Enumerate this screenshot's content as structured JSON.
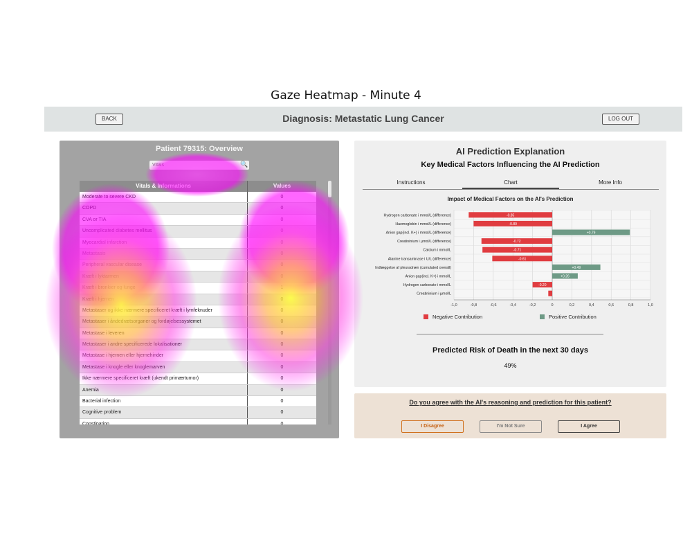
{
  "figure_title": "Gaze Heatmap - Minute 4",
  "topbar": {
    "back_label": "BACK",
    "title": "Diagnosis: Metastatic Lung Cancer",
    "logout_label": "LOG OUT"
  },
  "patient_panel": {
    "title": "Patient 79315: Overview",
    "search_placeholder": "Vitals",
    "column_headers": [
      "Vitals & Informations",
      "Values"
    ],
    "rows": [
      {
        "label": "Moderate to severe CKD",
        "value": "0"
      },
      {
        "label": "COPD",
        "value": "0"
      },
      {
        "label": "CVA or TIA",
        "value": "0"
      },
      {
        "label": "Uncomplicated diabetes mellitus",
        "value": "0"
      },
      {
        "label": "Myocardial infarction",
        "value": "0"
      },
      {
        "label": "Metastasis",
        "value": "0"
      },
      {
        "label": "Peripheral vascular disease",
        "value": "0"
      },
      {
        "label": "Kræft i lyktarmen",
        "value": "0"
      },
      {
        "label": "Kræft i bronkier og lunge",
        "value": "1"
      },
      {
        "label": "Kræft i hjernen",
        "value": "0"
      },
      {
        "label": "Metastaser og ikke nærmere specificeret kræft i lymfeknuder",
        "value": "0"
      },
      {
        "label": "Metastaser i åndedrætsorganer og fordøjelsessystemet",
        "value": "0"
      },
      {
        "label": "Metastase i leveren",
        "value": "0"
      },
      {
        "label": "Metastaser i andre specificerede lokalisationer",
        "value": "0"
      },
      {
        "label": "Metastase i hjernen eller hjernehinder",
        "value": "0"
      },
      {
        "label": "Metastase i knogle eller knoglemarven",
        "value": "0"
      },
      {
        "label": "Ikke nærmere specificeret kræft (ukendt primærtumor)",
        "value": "0"
      },
      {
        "label": "Anemia",
        "value": "0"
      },
      {
        "label": "Bacterial infection",
        "value": "0"
      },
      {
        "label": "Cognitive problem",
        "value": "0"
      },
      {
        "label": "Constipation",
        "value": "0"
      }
    ]
  },
  "ai_panel": {
    "title": "AI Prediction Explanation",
    "subtitle": "Key Medical Factors Influencing the AI Prediction",
    "tabs": [
      "Instructions",
      "Chart",
      "More Info"
    ],
    "active_tab": "Chart",
    "risk_title": "Predicted Risk of Death in the next 30 days",
    "risk_value": "49%"
  },
  "chart_data": {
    "type": "bar",
    "orientation": "horizontal",
    "title": "Impact of Medical Factors on the AI's Prediction",
    "categories": [
      "Hydrogen carbonate i mmol/L (difference)",
      "Haemoglobin i mmol/L (difference)",
      "Anion gap(incl. K+) i mmol/L (difference)",
      "Creatininium i µmol/L (difference)",
      "Calcium i mmol/L",
      "Alanine transaminase i U/L (difference)",
      "Indlæggelse af pleuradræn (cumulated overall)",
      "Anion gap(incl. K+) i mmol/L",
      "Hydrogen carbonate i mmol/L",
      "Creatininium i µmol/L"
    ],
    "values": [
      -0.85,
      -0.8,
      0.79,
      -0.72,
      -0.71,
      -0.61,
      0.49,
      0.26,
      -0.2,
      -0.04
    ],
    "data_labels": [
      "-0.85",
      "-0.80",
      "+0.79",
      "-0.72",
      "-0.71",
      "-0.61",
      "+0.49",
      "+0.26",
      "-0.20",
      ""
    ],
    "xlim": [
      -1.0,
      1.0
    ],
    "xticks": [
      -1.0,
      -0.8,
      -0.6,
      -0.4,
      -0.2,
      0,
      0.2,
      0.4,
      0.6,
      0.8,
      1.0
    ],
    "xtick_labels": [
      "-1,0",
      "-0,8",
      "-0,6",
      "-0,4",
      "-0,2",
      "0",
      "0,2",
      "0,4",
      "0,6",
      "0,8",
      "1,0"
    ],
    "grid": true,
    "legend": [
      {
        "name": "Negative Contribution",
        "color": "#e03c40"
      },
      {
        "name": "Positive Contribution",
        "color": "#6e9a86"
      }
    ],
    "legend_position": "bottom"
  },
  "question_panel": {
    "question": "Do you agree with the AI's reasoning and prediction for this patient?",
    "buttons": [
      "I Disagree",
      "I'm Not Sure",
      "I Agree"
    ]
  }
}
